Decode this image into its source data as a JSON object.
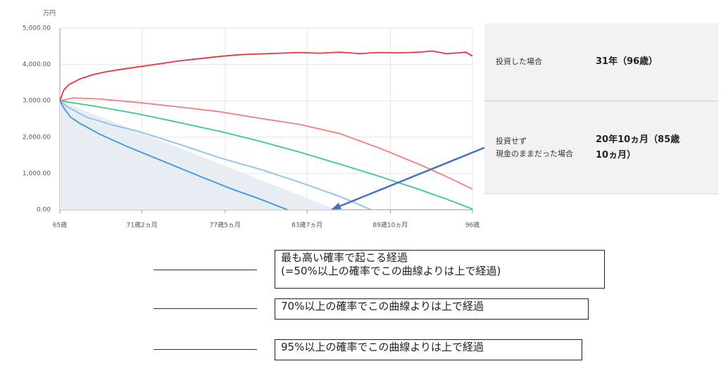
{
  "chart_data": {
    "type": "line",
    "y_unit": "万円",
    "xlim": [
      65,
      96
    ],
    "xticks": [
      {
        "value": 65,
        "label": "65歳"
      },
      {
        "value": 71.17,
        "label": "71歳2ヵ月"
      },
      {
        "value": 77.42,
        "label": "77歳5ヵ月"
      },
      {
        "value": 83.58,
        "label": "83歳7ヵ月"
      },
      {
        "value": 89.83,
        "label": "89歳10ヵ月"
      },
      {
        "value": 96,
        "label": "96歳"
      }
    ],
    "ylim": [
      0,
      5000
    ],
    "yticks": [
      {
        "value": 0,
        "label": "0.00"
      },
      {
        "value": 1000,
        "label": "1,000.00"
      },
      {
        "value": 2000,
        "label": "2,000.00"
      },
      {
        "value": 3000,
        "label": "3,000.00"
      },
      {
        "value": 4000,
        "label": "4,000.00"
      },
      {
        "value": 5000,
        "label": "5,000.00"
      }
    ],
    "grid": true,
    "area": {
      "color": "#e8ecf3",
      "x": [
        65,
        85.8
      ],
      "values": [
        3000,
        0
      ]
    },
    "series": [
      {
        "color": "#e8343a",
        "x": [
          65,
          65.3,
          65.7,
          66.5,
          67.5,
          68.5,
          69.5,
          71,
          72.5,
          74,
          75.5,
          77,
          78.5,
          80,
          81.5,
          83,
          84.5,
          86,
          87.5,
          89,
          90.5,
          92,
          93,
          94,
          95,
          95.5,
          96
        ],
        "values": [
          3000,
          3300,
          3450,
          3600,
          3720,
          3800,
          3860,
          3940,
          4020,
          4100,
          4160,
          4220,
          4270,
          4290,
          4310,
          4330,
          4310,
          4340,
          4300,
          4330,
          4320,
          4340,
          4370,
          4300,
          4320,
          4340,
          4230
        ]
      },
      {
        "color": "#f08080",
        "x": [
          65,
          66,
          68,
          71,
          74,
          77,
          80,
          83,
          86,
          89,
          92,
          94,
          96
        ],
        "values": [
          3000,
          3080,
          3050,
          2950,
          2830,
          2700,
          2520,
          2350,
          2100,
          1700,
          1250,
          920,
          570
        ]
      },
      {
        "color": "#3cc98c",
        "x": [
          65,
          68,
          71,
          74,
          77,
          80,
          83,
          86,
          89,
          92,
          94,
          96
        ],
        "values": [
          3000,
          2830,
          2630,
          2400,
          2160,
          1890,
          1590,
          1260,
          920,
          560,
          300,
          20
        ]
      },
      {
        "color": "#8cc1ec",
        "x": [
          65,
          65.5,
          67,
          69,
          71,
          74,
          77,
          80,
          83,
          86,
          88.4
        ],
        "values": [
          3000,
          2850,
          2550,
          2330,
          2150,
          1800,
          1430,
          1120,
          760,
          370,
          0
        ]
      },
      {
        "color": "#3a96e0",
        "x": [
          65,
          65.3,
          65.8,
          66.5,
          68,
          70,
          72,
          74,
          76,
          78,
          80,
          82.1
        ],
        "values": [
          3000,
          2800,
          2550,
          2380,
          2080,
          1750,
          1450,
          1150,
          850,
          560,
          300,
          0
        ]
      }
    ]
  },
  "info_table": {
    "rows": [
      {
        "label": [
          "投資した場合"
        ],
        "value": "31年（96歳）"
      },
      {
        "label": [
          "投資せず",
          "現金のままだった場合"
        ],
        "value": "20年10ヵ月（85歳10ヵ月）"
      }
    ]
  },
  "legend_notes": [
    [
      "最も高い確率で起こる経過",
      "(=50%以上の確率でこの曲線よりは上で経過)"
    ],
    [
      "70%以上の確率でこの曲線よりは上で経過"
    ],
    [
      "95%以上の確率でこの曲線よりは上で経過"
    ]
  ]
}
